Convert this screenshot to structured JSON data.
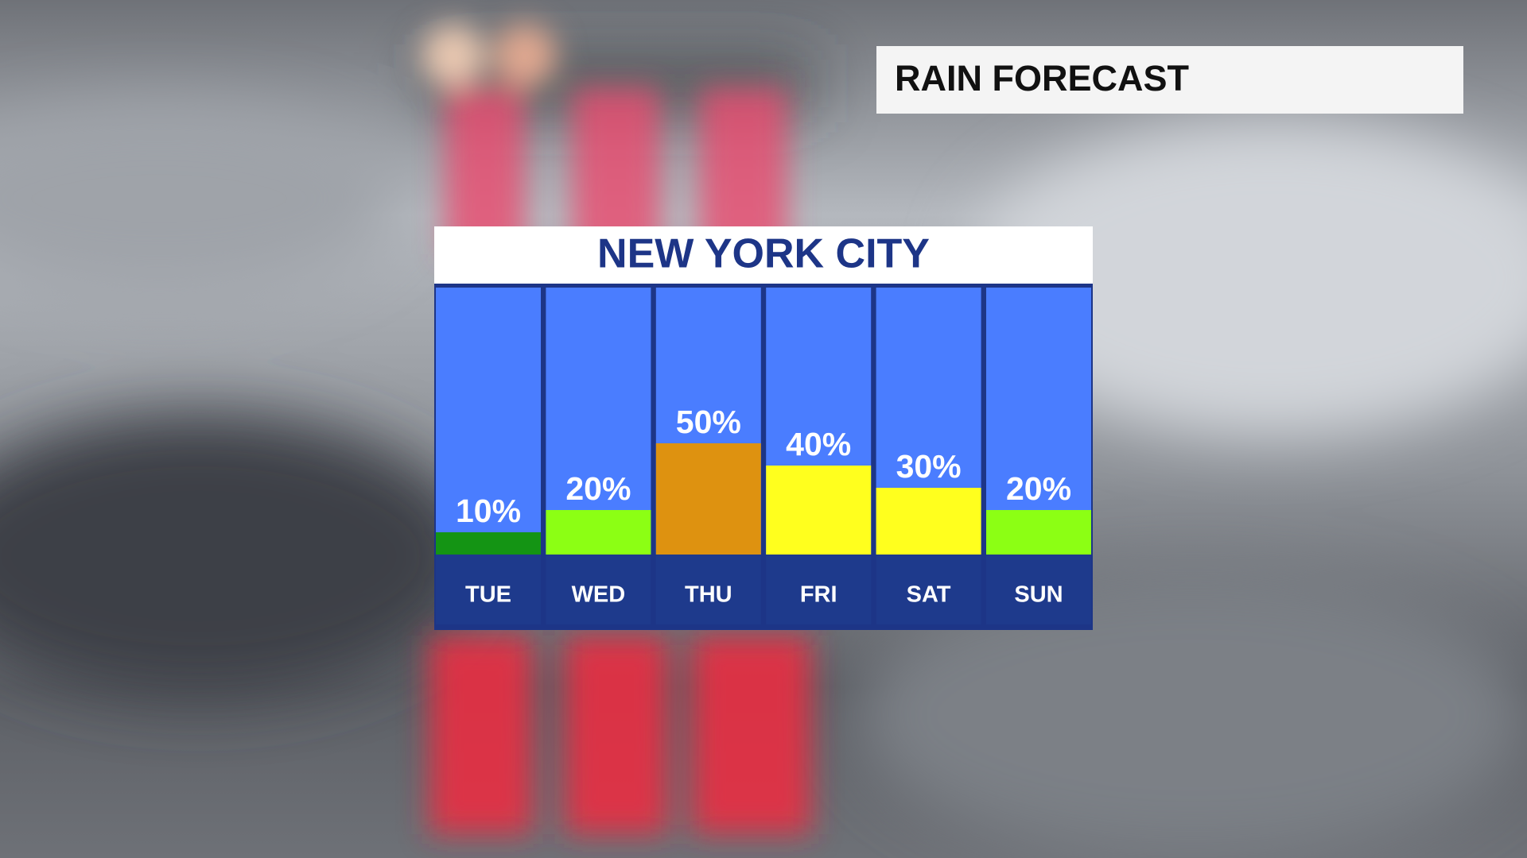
{
  "chart_data": {
    "type": "bar",
    "header": "RAIN FORECAST",
    "title": "NEW YORK CITY",
    "categories": [
      "TUE",
      "WED",
      "THU",
      "FRI",
      "SAT",
      "SUN"
    ],
    "values": [
      10,
      20,
      50,
      40,
      30,
      20
    ],
    "value_labels": [
      "10%",
      "20%",
      "50%",
      "40%",
      "30%",
      "20%"
    ],
    "colors": [
      "#149414",
      "#8cff14",
      "#de9210",
      "#ffff1e",
      "#ffff1e",
      "#8cff14"
    ]
  }
}
